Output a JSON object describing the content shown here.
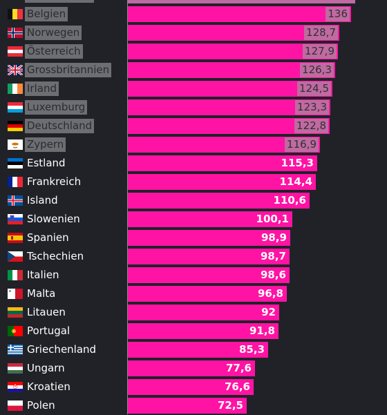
{
  "chart_data": {
    "type": "bar",
    "orientation": "horizontal",
    "categories": [
      "Belgien",
      "Norwegen",
      "Österreich",
      "Grossbritannien",
      "Irland",
      "Luxemburg",
      "Deutschland",
      "Zypern",
      "Estland",
      "Frankreich",
      "Island",
      "Slowenien",
      "Spanien",
      "Tschechien",
      "Italien",
      "Malta",
      "Litauen",
      "Portugal",
      "Griechenland",
      "Ungarn",
      "Kroatien",
      "Polen"
    ],
    "values": [
      136,
      128.7,
      127.9,
      126.3,
      124.5,
      123.3,
      122.8,
      116.9,
      115.3,
      114.4,
      110.6,
      100.1,
      98.9,
      98.7,
      98.6,
      96.8,
      92,
      91.8,
      85.3,
      77.6,
      76.6,
      72.5
    ],
    "value_labels": [
      "136",
      "128,7",
      "127,9",
      "126,3",
      "124,5",
      "123,3",
      "122,8",
      "116,9",
      "115,3",
      "114,4",
      "110,6",
      "100,1",
      "98,9",
      "98,7",
      "98,6",
      "96,8",
      "92",
      "91,8",
      "85,3",
      "77,6",
      "76,6",
      "72,5"
    ],
    "highlighted_rows": 8,
    "bar_color": "#ff13a4",
    "xlim": [
      0,
      140
    ]
  },
  "flags": [
    "flag-belgium-icon",
    "flag-norway-icon",
    "flag-austria-icon",
    "flag-uk-icon",
    "flag-ireland-icon",
    "flag-luxembourg-icon",
    "flag-germany-icon",
    "flag-cyprus-icon",
    "flag-estonia-icon",
    "flag-france-icon",
    "flag-iceland-icon",
    "flag-slovenia-icon",
    "flag-spain-icon",
    "flag-czechia-icon",
    "flag-italy-icon",
    "flag-malta-icon",
    "flag-lithuania-icon",
    "flag-portugal-icon",
    "flag-greece-icon",
    "flag-hungary-icon",
    "flag-croatia-icon",
    "flag-poland-icon"
  ]
}
